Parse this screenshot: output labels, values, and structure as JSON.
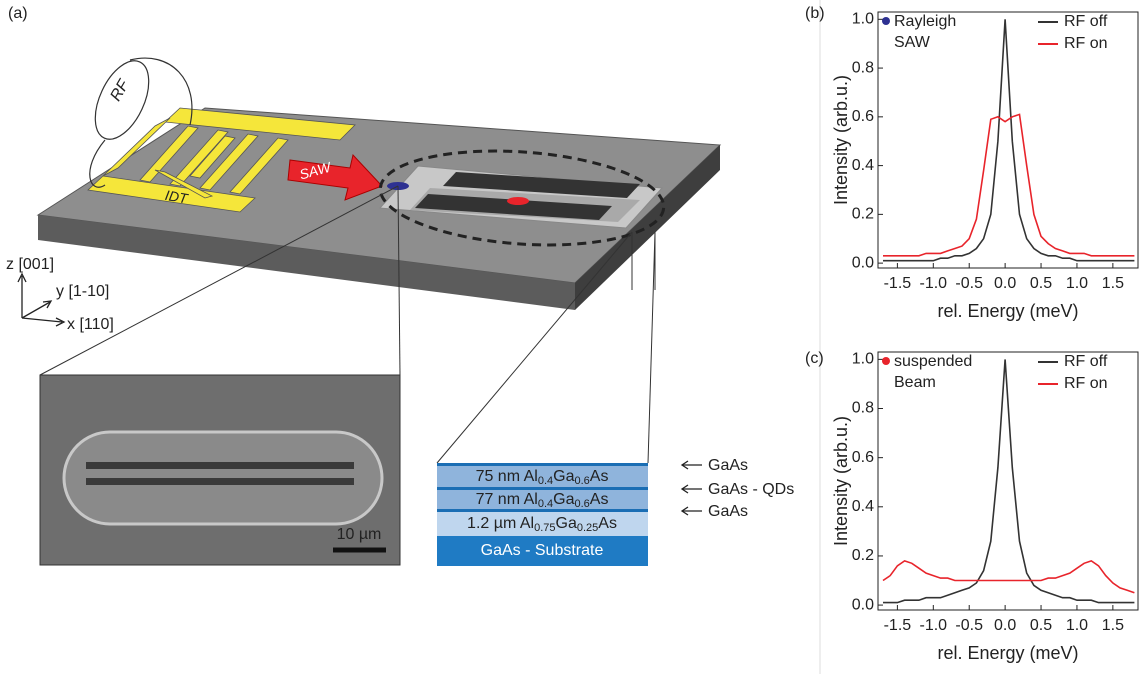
{
  "schematic": {
    "panel_label": "(a)",
    "rf": "RF",
    "idt": "IDT",
    "saw": "SAW",
    "axes": [
      "z [001]",
      "y [1-10]",
      "x [110]"
    ],
    "scale_bar": "10 µm",
    "layers": [
      [
        "75 nm Al",
        "0.4",
        "Ga",
        "0.6",
        "As"
      ],
      [
        "77 nm Al",
        "0.4",
        "Ga",
        "0.6",
        "As"
      ],
      [
        "1.2 µm Al",
        "0.75",
        "Ga",
        "0.25",
        "As"
      ],
      [
        "GaAs - Substrate"
      ]
    ],
    "interfaces": [
      "GaAs",
      "GaAs - QDs",
      "GaAs"
    ]
  },
  "chart_data": [
    {
      "type": "line",
      "panel_label": "(b)",
      "annotation": [
        "Rayleigh",
        "SAW"
      ],
      "marker_color": "#2e3192",
      "xlabel": "rel. Energy (meV)",
      "ylabel": "Intensity (arb.u.)",
      "x": [
        -1.7,
        -1.6,
        -1.5,
        -1.4,
        -1.3,
        -1.2,
        -1.1,
        -1.0,
        -0.9,
        -0.8,
        -0.7,
        -0.6,
        -0.5,
        -0.4,
        -0.3,
        -0.2,
        -0.1,
        0,
        0.1,
        0.2,
        0.3,
        0.4,
        0.5,
        0.6,
        0.7,
        0.8,
        0.9,
        1.0,
        1.1,
        1.2,
        1.3,
        1.4,
        1.5,
        1.6,
        1.7,
        1.8
      ],
      "series": [
        {
          "name": "RF off",
          "color": "#333333",
          "values": [
            0.01,
            0.01,
            0.01,
            0.01,
            0.01,
            0.01,
            0.01,
            0.01,
            0.02,
            0.02,
            0.03,
            0.03,
            0.04,
            0.06,
            0.1,
            0.2,
            0.5,
            1.0,
            0.5,
            0.2,
            0.1,
            0.06,
            0.04,
            0.03,
            0.03,
            0.02,
            0.02,
            0.01,
            0.01,
            0.01,
            0.01,
            0.01,
            0.01,
            0.01,
            0.01,
            0.01
          ]
        },
        {
          "name": "RF on",
          "color": "#e8242b",
          "values": [
            0.03,
            0.03,
            0.03,
            0.03,
            0.03,
            0.03,
            0.04,
            0.04,
            0.04,
            0.05,
            0.06,
            0.07,
            0.1,
            0.18,
            0.38,
            0.59,
            0.6,
            0.58,
            0.6,
            0.61,
            0.4,
            0.2,
            0.11,
            0.08,
            0.06,
            0.05,
            0.04,
            0.04,
            0.04,
            0.03,
            0.03,
            0.03,
            0.03,
            0.03,
            0.03,
            0.03
          ]
        }
      ],
      "xlim": [
        -1.77,
        1.85
      ],
      "ylim": [
        -0.02,
        1.03
      ],
      "xticks": [
        -1.5,
        {
          "value": -1.0,
          "label": "-1.0"
        },
        -0.5,
        {
          "value": 0,
          "label": "0.0"
        },
        0.5,
        {
          "value": 1.0,
          "label": "1.0"
        },
        1.5
      ],
      "yticks": [
        {
          "value": 0,
          "label": "0.0"
        },
        0.2,
        0.4,
        0.6,
        0.8,
        {
          "value": 1.0,
          "label": "1.0"
        }
      ]
    },
    {
      "type": "line",
      "panel_label": "(c)",
      "annotation": [
        "suspended",
        "Beam"
      ],
      "marker_color": "#e8242b",
      "xlabel": "rel. Energy (meV)",
      "ylabel": "Intensity (arb.u.)",
      "x": [
        -1.7,
        -1.6,
        -1.5,
        -1.4,
        -1.3,
        -1.2,
        -1.1,
        -1.0,
        -0.9,
        -0.8,
        -0.7,
        -0.6,
        -0.5,
        -0.4,
        -0.3,
        -0.2,
        -0.1,
        0,
        0.1,
        0.2,
        0.3,
        0.4,
        0.5,
        0.6,
        0.7,
        0.8,
        0.9,
        1.0,
        1.1,
        1.2,
        1.3,
        1.4,
        1.5,
        1.6,
        1.7,
        1.8
      ],
      "series": [
        {
          "name": "RF off",
          "color": "#333333",
          "values": [
            0.01,
            0.01,
            0.01,
            0.02,
            0.02,
            0.02,
            0.03,
            0.03,
            0.03,
            0.04,
            0.05,
            0.06,
            0.07,
            0.09,
            0.14,
            0.26,
            0.56,
            1.0,
            0.56,
            0.26,
            0.13,
            0.08,
            0.06,
            0.05,
            0.04,
            0.03,
            0.03,
            0.02,
            0.02,
            0.02,
            0.01,
            0.01,
            0.01,
            0.01,
            0.01,
            0.01
          ]
        },
        {
          "name": "RF on",
          "color": "#e8242b",
          "values": [
            0.1,
            0.12,
            0.16,
            0.18,
            0.17,
            0.15,
            0.13,
            0.12,
            0.11,
            0.11,
            0.1,
            0.1,
            0.1,
            0.1,
            0.1,
            0.1,
            0.1,
            0.1,
            0.1,
            0.1,
            0.1,
            0.1,
            0.1,
            0.11,
            0.11,
            0.12,
            0.13,
            0.15,
            0.17,
            0.18,
            0.16,
            0.12,
            0.09,
            0.07,
            0.06,
            0.05
          ]
        }
      ],
      "xlim": [
        -1.77,
        1.85
      ],
      "ylim": [
        -0.02,
        1.03
      ],
      "xticks": [
        -1.5,
        {
          "value": -1.0,
          "label": "-1.0"
        },
        -0.5,
        {
          "value": 0,
          "label": "0.0"
        },
        0.5,
        {
          "value": 1.0,
          "label": "1.0"
        },
        1.5
      ],
      "yticks": [
        {
          "value": 0,
          "label": "0.0"
        },
        0.2,
        0.4,
        0.6,
        0.8,
        {
          "value": 1.0,
          "label": "1.0"
        }
      ]
    }
  ]
}
